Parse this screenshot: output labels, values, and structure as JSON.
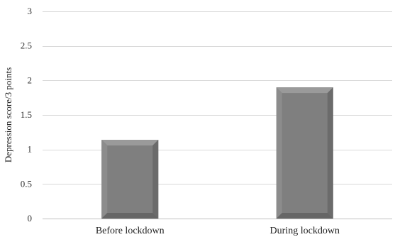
{
  "chart_data": {
    "type": "bar",
    "categories": [
      "Before lockdown",
      "During lockdown"
    ],
    "values": [
      1.14,
      1.9
    ],
    "xlabel": "",
    "ylabel": "Depression score/3 points",
    "ylim": [
      0,
      3
    ],
    "yticks": [
      0,
      0.5,
      1,
      1.5,
      2,
      2.5,
      3
    ],
    "ytick_labels": [
      "0",
      "0.5",
      "1",
      "1.5",
      "2",
      "2.5",
      "3"
    ],
    "grid": true,
    "legend": "none",
    "bar_color": "#7f7f7f"
  }
}
